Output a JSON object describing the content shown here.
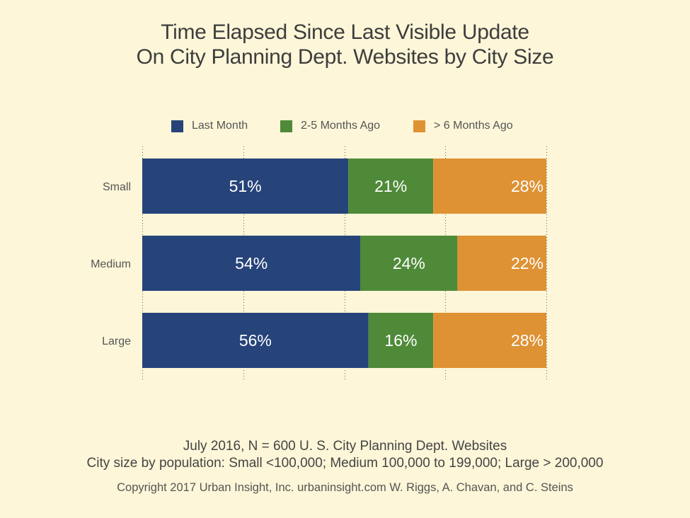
{
  "chart_data": {
    "type": "bar",
    "orientation": "horizontal",
    "stacked": true,
    "title": "Time Elapsed Since Last Visible Update On City Planning Dept. Websites by City Size",
    "title_lines": [
      "Time Elapsed Since Last Visible Update",
      "On City Planning Dept. Websites by City Size"
    ],
    "categories": [
      "Small",
      "Medium",
      "Large"
    ],
    "series": [
      {
        "name": "Last Month",
        "color": "#26437a",
        "values": [
          51,
          54,
          56
        ],
        "labels": [
          "51%",
          "54%",
          "56%"
        ]
      },
      {
        "name": "2-5 Months Ago",
        "color": "#4f8a39",
        "values": [
          21,
          24,
          16
        ],
        "labels": [
          "21%",
          "24%",
          "16%"
        ]
      },
      {
        "name": "> 6 Months Ago",
        "color": "#de9234",
        "values": [
          28,
          22,
          28
        ],
        "labels": [
          "28%",
          "22%",
          "28%"
        ]
      }
    ],
    "xlim": [
      0,
      100
    ],
    "grid": true,
    "legend_position": "top-center",
    "notes": [
      "July 2016, N = 600 U. S. City Planning Dept. Websites",
      "City size by population:  Small <100,000; Medium 100,000 to 199,000; Large > 200,000"
    ],
    "copyright": "Copyright 2017 Urban Insight, Inc. urbaninsight.com  W. Riggs, A. Chavan, and C. Steins"
  }
}
